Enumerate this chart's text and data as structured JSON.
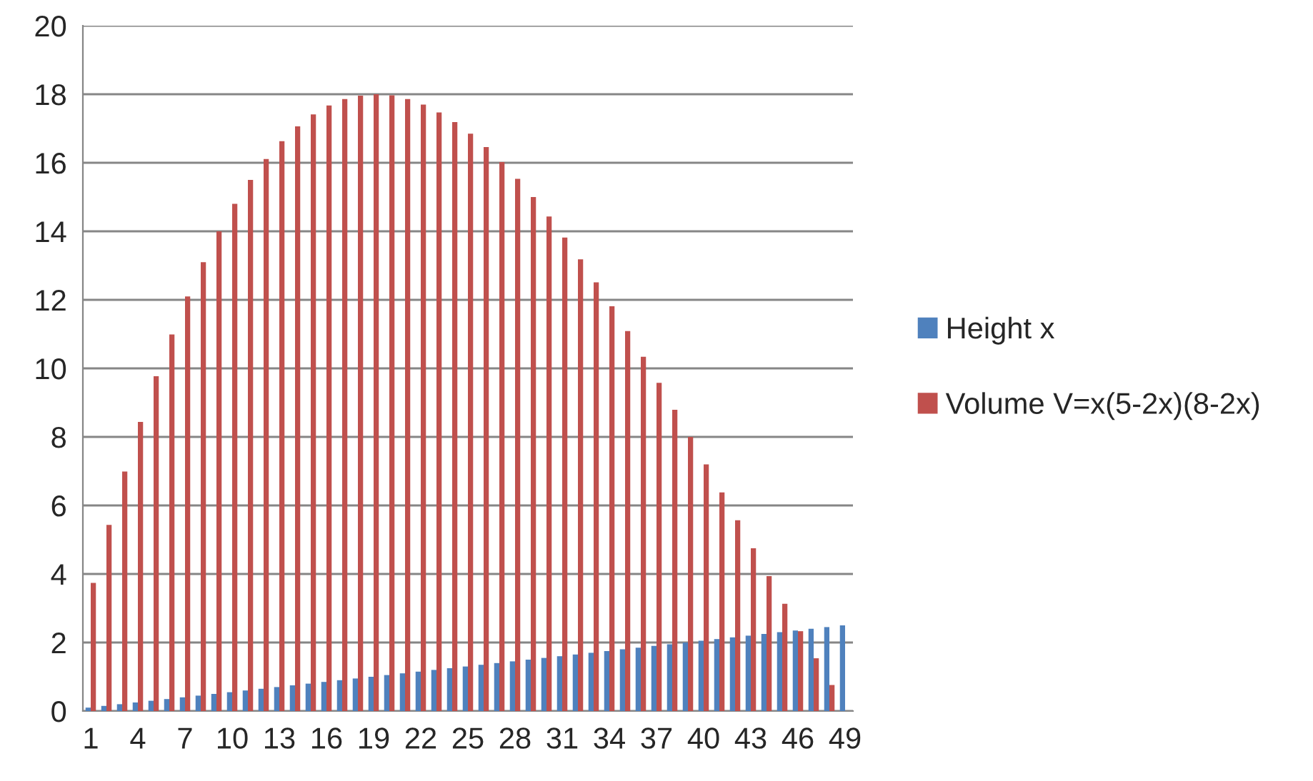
{
  "chart_data": {
    "type": "bar",
    "categories": [
      "1",
      null,
      null,
      "4",
      null,
      null,
      "7",
      null,
      null,
      "10",
      null,
      null,
      "13",
      null,
      null,
      "16",
      null,
      null,
      "19",
      null,
      null,
      "22",
      null,
      null,
      "25",
      null,
      null,
      "28",
      null,
      null,
      "31",
      null,
      null,
      "34",
      null,
      null,
      "37",
      null,
      null,
      "40",
      null,
      null,
      "43",
      null,
      null,
      "46",
      null,
      null,
      "49"
    ],
    "series": [
      {
        "name": "Height x",
        "color": "#4f81bd",
        "values": [
          0.1,
          0.15,
          0.2,
          0.25,
          0.3,
          0.35,
          0.4,
          0.45,
          0.5,
          0.55,
          0.6,
          0.65,
          0.7,
          0.75,
          0.8,
          0.85,
          0.9,
          0.95,
          1.0,
          1.05,
          1.1,
          1.15,
          1.2,
          1.25,
          1.3,
          1.35,
          1.4,
          1.45,
          1.5,
          1.55,
          1.6,
          1.65,
          1.7,
          1.75,
          1.8,
          1.85,
          1.9,
          1.95,
          2.0,
          2.05,
          2.1,
          2.15,
          2.2,
          2.25,
          2.3,
          2.35,
          2.4,
          2.45,
          2.5
        ]
      },
      {
        "name": "Volume V=x(5-2x)(8-2x)",
        "color": "#c0504d",
        "values": [
          3.74,
          5.43,
          6.99,
          8.44,
          9.77,
          10.99,
          12.1,
          13.1,
          14.0,
          14.8,
          15.5,
          16.11,
          16.63,
          17.06,
          17.41,
          17.67,
          17.86,
          17.96,
          18.0,
          17.97,
          17.86,
          17.7,
          17.47,
          17.19,
          16.85,
          16.46,
          16.02,
          15.53,
          15.0,
          14.43,
          13.82,
          13.18,
          12.51,
          11.81,
          11.09,
          10.34,
          9.58,
          8.79,
          8.0,
          7.2,
          6.38,
          5.57,
          4.75,
          3.94,
          3.13,
          2.33,
          1.54,
          0.76,
          0.0
        ]
      }
    ],
    "ylim": [
      0,
      20
    ],
    "yticks": [
      0,
      2,
      4,
      6,
      8,
      10,
      12,
      14,
      16,
      18,
      20
    ],
    "grid": "y",
    "legend": "right"
  }
}
